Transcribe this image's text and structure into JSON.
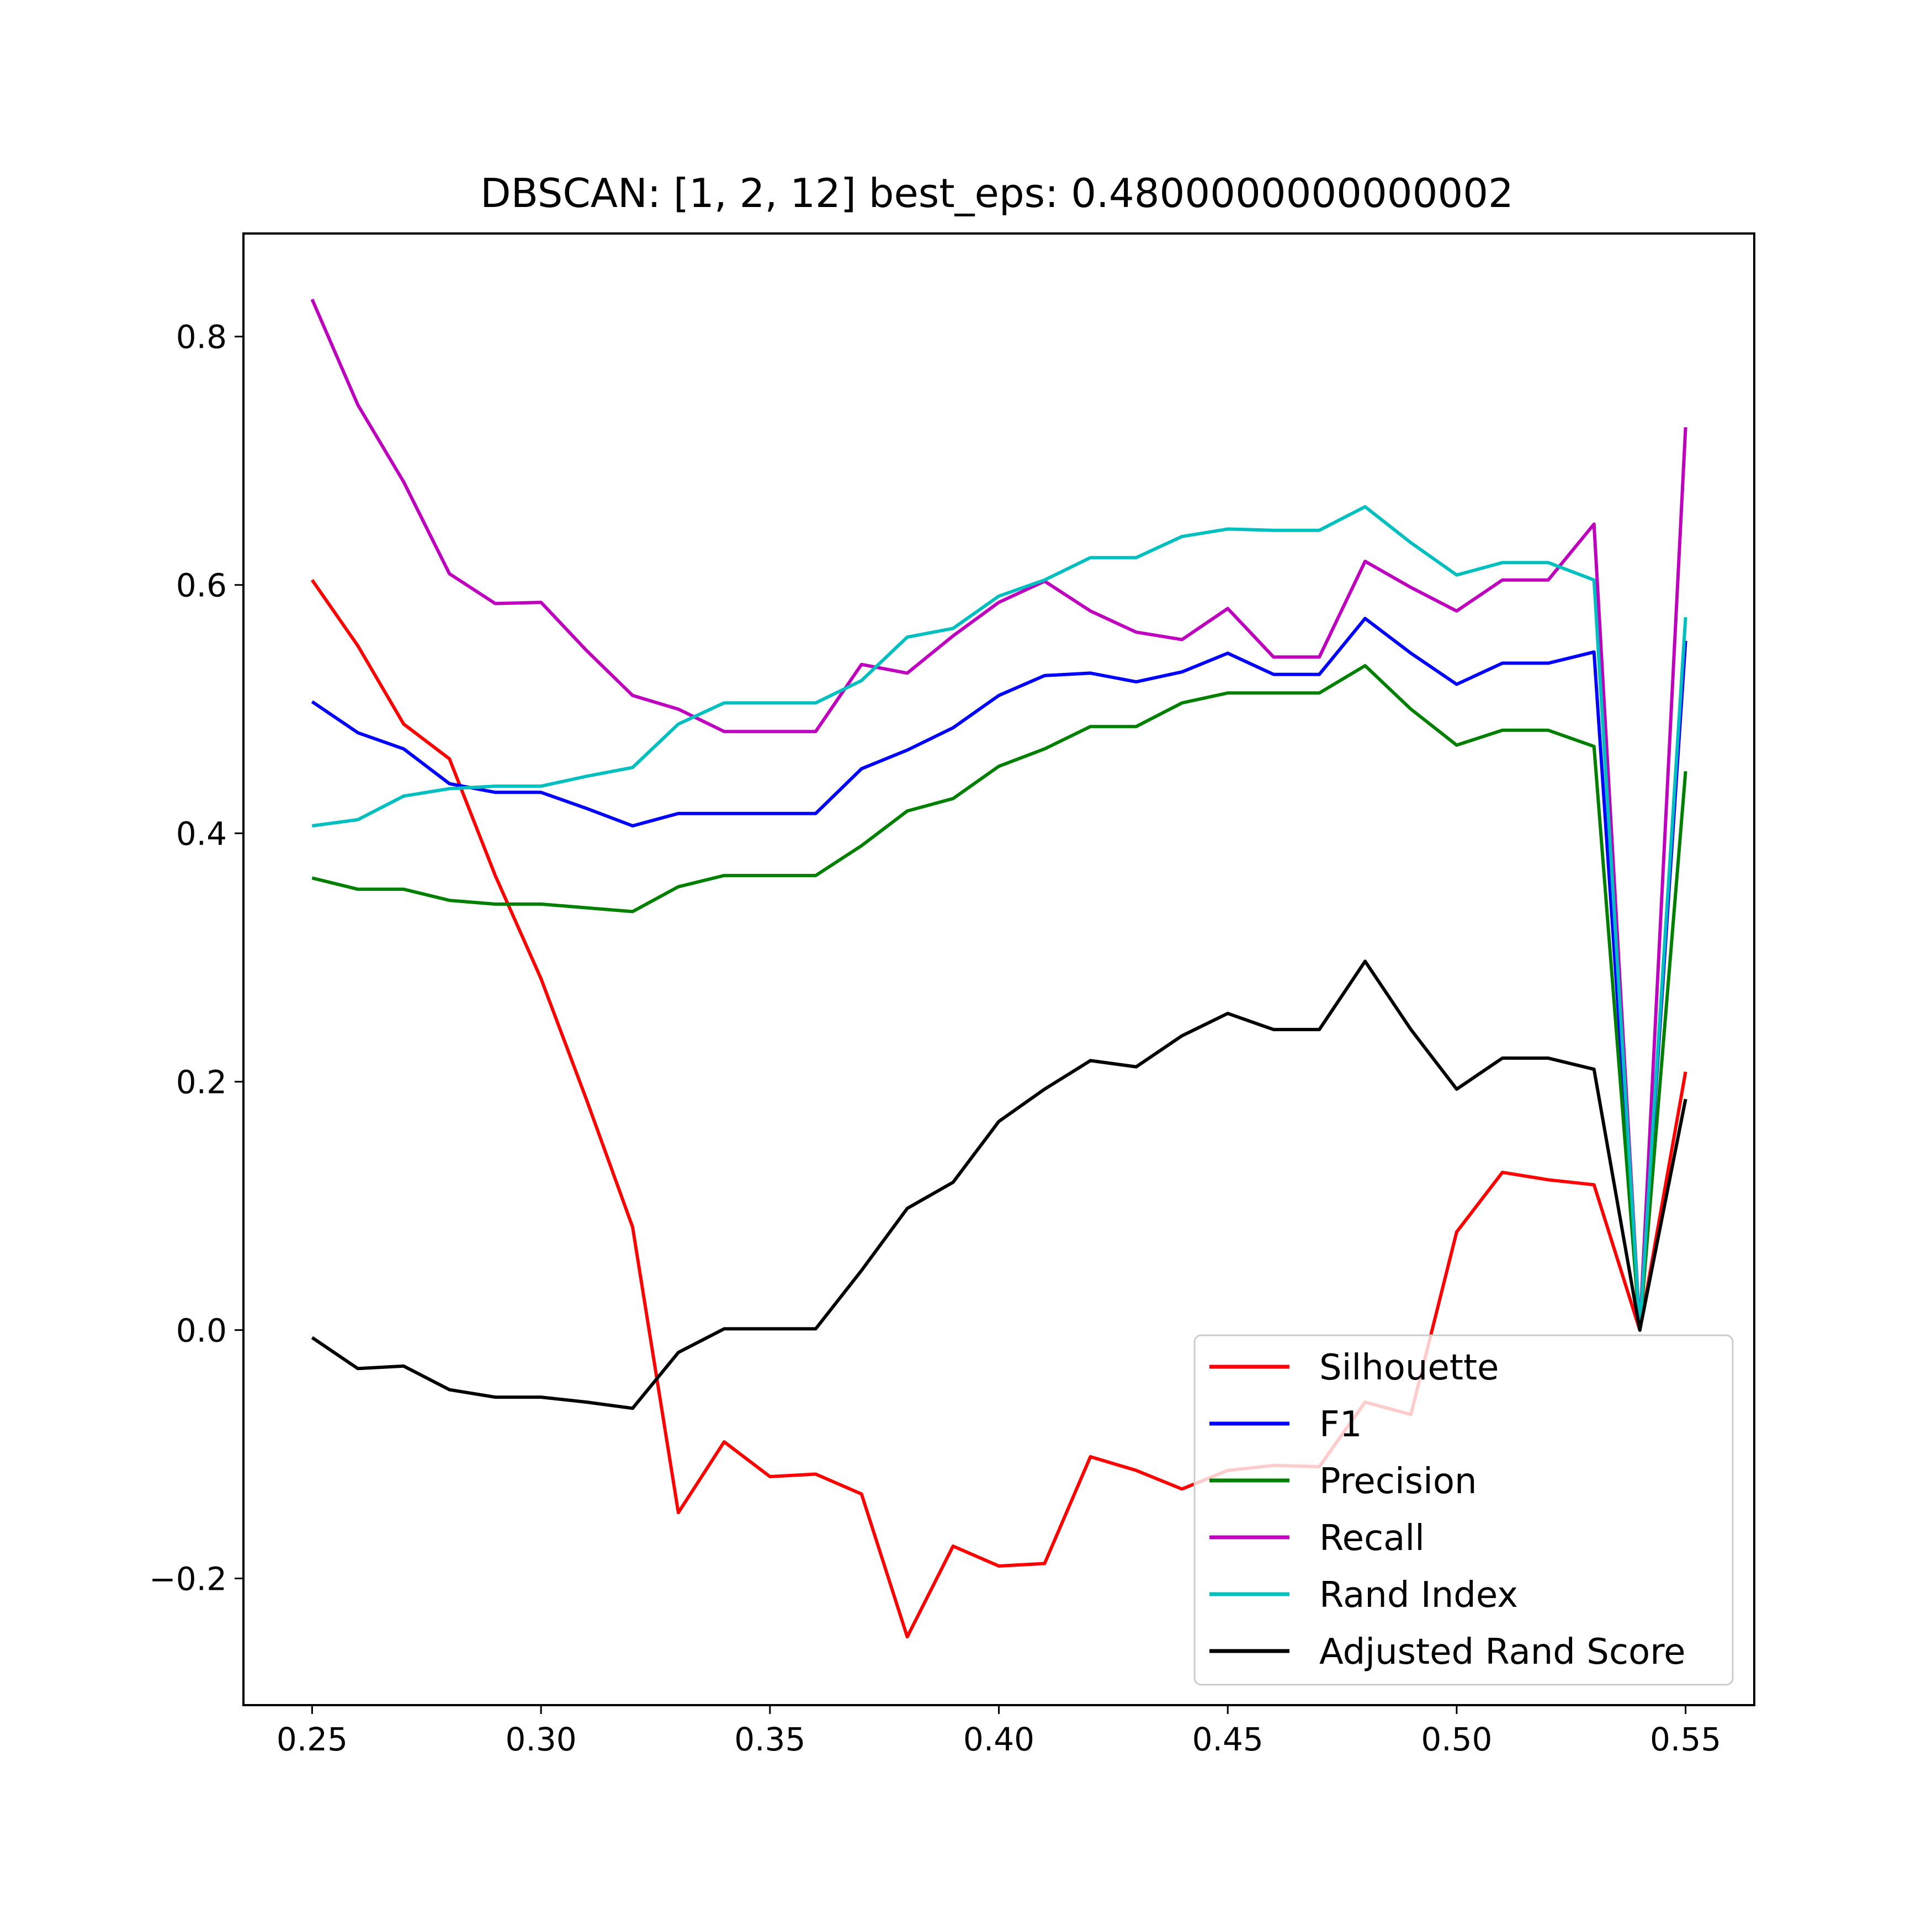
{
  "chart_data": {
    "type": "line",
    "title": "DBSCAN: [1, 2, 12] best_eps: 0.4800000000000002",
    "xlabel": "",
    "ylabel": "",
    "xlim": [
      0.235,
      0.565
    ],
    "ylim": [
      -0.302,
      0.883
    ],
    "grid": false,
    "legend_position": "lower-right",
    "x_ticks": [
      {
        "value": 0.25,
        "label": "0.25"
      },
      {
        "value": 0.3,
        "label": "0.30"
      },
      {
        "value": 0.35,
        "label": "0.35"
      },
      {
        "value": 0.4,
        "label": "0.40"
      },
      {
        "value": 0.45,
        "label": "0.45"
      },
      {
        "value": 0.5,
        "label": "0.50"
      },
      {
        "value": 0.55,
        "label": "0.55"
      }
    ],
    "y_ticks": [
      {
        "value": -0.2,
        "label": "−0.2"
      },
      {
        "value": 0.0,
        "label": "0.0"
      },
      {
        "value": 0.2,
        "label": "0.2"
      },
      {
        "value": 0.4,
        "label": "0.4"
      },
      {
        "value": 0.6,
        "label": "0.6"
      },
      {
        "value": 0.8,
        "label": "0.8"
      }
    ],
    "x": [
      0.25,
      0.26,
      0.27,
      0.28,
      0.29,
      0.3,
      0.31,
      0.32,
      0.33,
      0.34,
      0.35,
      0.36,
      0.37,
      0.38,
      0.39,
      0.4,
      0.41,
      0.42,
      0.43,
      0.44,
      0.45,
      0.46,
      0.47,
      0.48,
      0.49,
      0.5,
      0.51,
      0.52,
      0.53,
      0.54,
      0.55
    ],
    "series": [
      {
        "name": "Silhouette",
        "color": "#ff0000",
        "values": [
          0.604,
          0.551,
          0.488,
          0.46,
          0.366,
          0.283,
          0.185,
          0.083,
          -0.147,
          -0.09,
          -0.118,
          -0.116,
          -0.132,
          -0.247,
          -0.174,
          -0.19,
          -0.188,
          -0.102,
          -0.113,
          -0.128,
          -0.113,
          -0.109,
          -0.11,
          -0.058,
          -0.068,
          0.079,
          0.127,
          0.121,
          0.117,
          0.0,
          0.208
        ]
      },
      {
        "name": "F1",
        "color": "#0000ff",
        "values": [
          0.506,
          0.481,
          0.468,
          0.44,
          0.433,
          0.433,
          0.42,
          0.406,
          0.416,
          0.416,
          0.416,
          0.416,
          0.452,
          0.467,
          0.485,
          0.511,
          0.527,
          0.529,
          0.522,
          0.53,
          0.545,
          0.528,
          0.528,
          0.573,
          0.545,
          0.52,
          0.537,
          0.537,
          0.546,
          0.0,
          0.555
        ]
      },
      {
        "name": "Precision",
        "color": "#008000",
        "values": [
          0.364,
          0.355,
          0.355,
          0.346,
          0.343,
          0.343,
          0.34,
          0.337,
          0.357,
          0.366,
          0.366,
          0.366,
          0.39,
          0.418,
          0.428,
          0.454,
          0.468,
          0.486,
          0.486,
          0.505,
          0.513,
          0.513,
          0.513,
          0.535,
          0.5,
          0.471,
          0.483,
          0.483,
          0.47,
          0.0,
          0.45
        ]
      },
      {
        "name": "Recall",
        "color": "#bf00bf",
        "values": [
          0.83,
          0.745,
          0.683,
          0.609,
          0.585,
          0.586,
          0.547,
          0.511,
          0.5,
          0.482,
          0.482,
          0.482,
          0.536,
          0.529,
          0.559,
          0.586,
          0.603,
          0.579,
          0.562,
          0.556,
          0.581,
          0.542,
          0.542,
          0.619,
          0.598,
          0.579,
          0.604,
          0.604,
          0.649,
          0.0,
          0.727
        ]
      },
      {
        "name": "Rand Index",
        "color": "#00bfbf",
        "values": [
          0.406,
          0.411,
          0.43,
          0.436,
          0.438,
          0.438,
          0.446,
          0.453,
          0.488,
          0.505,
          0.505,
          0.505,
          0.523,
          0.558,
          0.565,
          0.591,
          0.604,
          0.622,
          0.622,
          0.639,
          0.645,
          0.644,
          0.644,
          0.663,
          0.634,
          0.608,
          0.618,
          0.618,
          0.604,
          0.0,
          0.574
        ]
      },
      {
        "name": "Adjusted Rand Score",
        "color": "#000000",
        "values": [
          -0.006,
          -0.031,
          -0.029,
          -0.048,
          -0.054,
          -0.054,
          -0.058,
          -0.063,
          -0.018,
          0.001,
          0.001,
          0.001,
          0.048,
          0.098,
          0.119,
          0.168,
          0.194,
          0.217,
          0.212,
          0.237,
          0.255,
          0.242,
          0.242,
          0.297,
          0.242,
          0.194,
          0.219,
          0.219,
          0.21,
          0.0,
          0.186
        ]
      }
    ]
  }
}
